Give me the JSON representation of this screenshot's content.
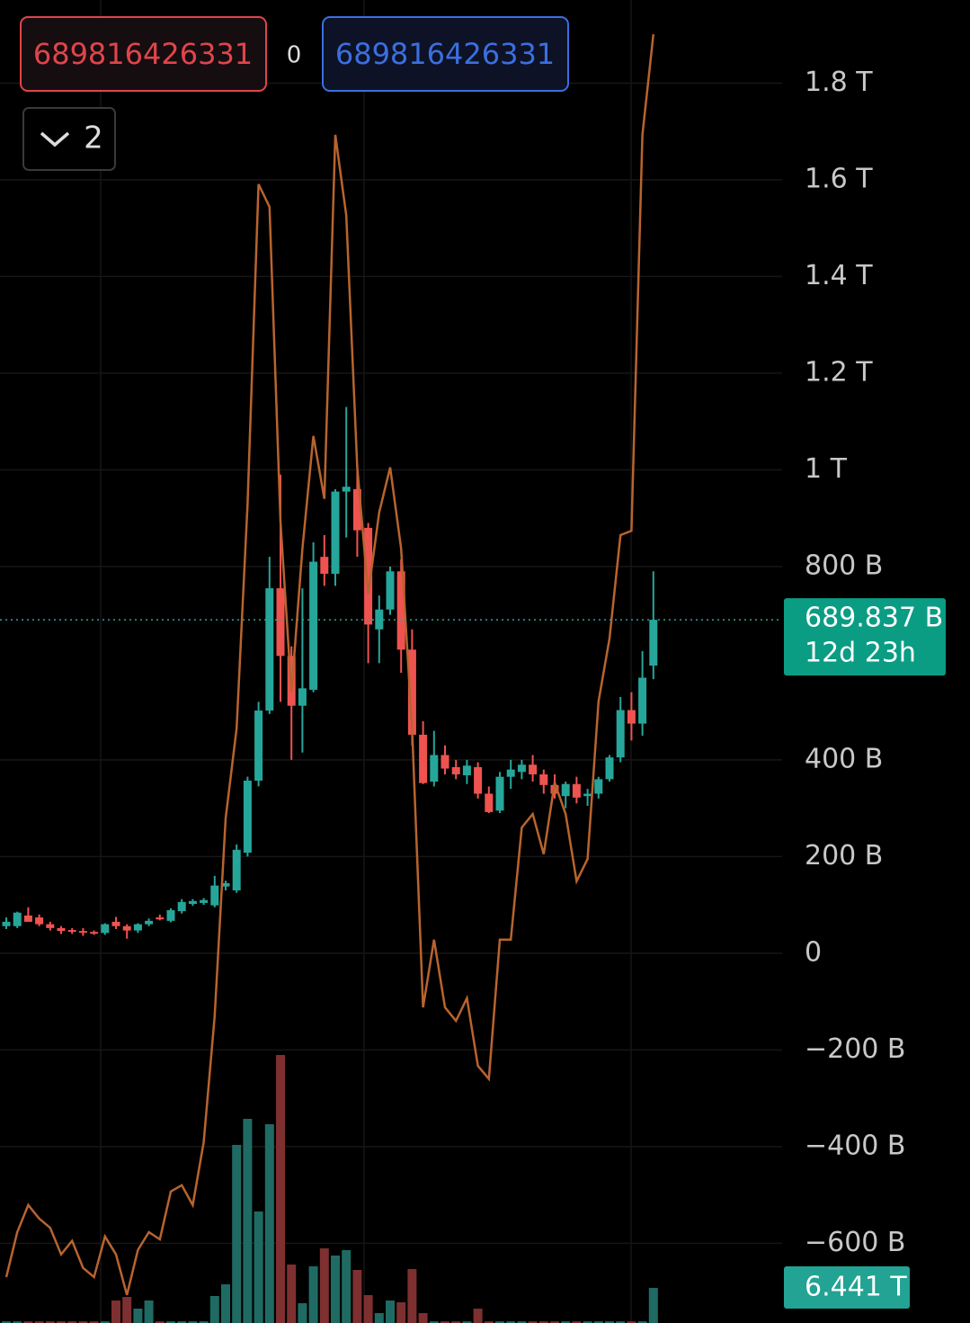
{
  "chart_data": {
    "type": "candlestick",
    "header": {
      "left_value": "689816426331",
      "middle_value": "0",
      "right_value": "689816426331",
      "collapse_count": "2"
    },
    "ylim": [
      -765,
      1972
    ],
    "yticks": [
      {
        "value": 1800,
        "label": "1.8 T"
      },
      {
        "value": 1600,
        "label": "1.6 T"
      },
      {
        "value": 1400,
        "label": "1.4 T"
      },
      {
        "value": 1200,
        "label": "1.2 T"
      },
      {
        "value": 1000,
        "label": "1 T"
      },
      {
        "value": 800,
        "label": "800 B"
      },
      {
        "value": 400,
        "label": "400 B"
      },
      {
        "value": 200,
        "label": "200 B"
      },
      0,
      {
        "value": -200,
        "label": "−200 B"
      },
      {
        "value": -400,
        "label": "−400 B"
      },
      {
        "value": -600,
        "label": "−600 B"
      }
    ],
    "grid": true,
    "up_color": "#26a69a",
    "down_color": "#ef5350",
    "open": [
      56,
      56,
      78,
      74,
      60,
      52,
      48,
      46,
      44,
      42,
      65,
      56,
      47,
      60,
      74,
      67,
      87,
      102,
      104,
      99,
      138,
      130,
      208,
      357,
      502,
      755,
      615,
      512,
      545,
      820,
      785,
      955,
      960,
      880,
      670,
      711,
      790,
      628,
      452,
      355,
      410,
      385,
      368,
      385,
      330,
      295,
      365,
      375,
      390,
      370,
      348,
      325,
      350,
      325,
      330,
      360,
      405,
      503,
      475,
      595
    ],
    "high": [
      74,
      86,
      95,
      80,
      65,
      56,
      52,
      52,
      47,
      62,
      75,
      60,
      62,
      72,
      80,
      93,
      112,
      112,
      114,
      160,
      150,
      225,
      365,
      520,
      820,
      990,
      635,
      755,
      850,
      865,
      960,
      1130,
      1010,
      890,
      740,
      800,
      815,
      670,
      480,
      460,
      430,
      400,
      400,
      395,
      345,
      375,
      400,
      400,
      410,
      380,
      370,
      355,
      365,
      340,
      365,
      410,
      530,
      540,
      625,
      790
    ],
    "low": [
      50,
      52,
      70,
      56,
      47,
      40,
      40,
      36,
      38,
      38,
      50,
      30,
      42,
      56,
      68,
      64,
      82,
      98,
      100,
      95,
      130,
      125,
      200,
      345,
      495,
      520,
      400,
      415,
      540,
      760,
      760,
      860,
      820,
      600,
      600,
      700,
      580,
      430,
      350,
      345,
      370,
      360,
      350,
      320,
      290,
      290,
      340,
      360,
      355,
      330,
      320,
      300,
      310,
      305,
      320,
      355,
      395,
      440,
      450,
      567
    ],
    "close": [
      65,
      84,
      65,
      60,
      52,
      46,
      46,
      44,
      42,
      60,
      56,
      47,
      60,
      67,
      70,
      89,
      106,
      108,
      110,
      140,
      145,
      214,
      357,
      502,
      755,
      615,
      512,
      548,
      810,
      785,
      955,
      965,
      875,
      680,
      711,
      790,
      628,
      452,
      352,
      410,
      382,
      370,
      388,
      330,
      292,
      365,
      380,
      390,
      370,
      348,
      330,
      350,
      322,
      330,
      360,
      405,
      503,
      475,
      570,
      689.837
    ],
    "last_price_label": "689.837 B",
    "countdown": "12d 23h",
    "indicator": {
      "color": "#b8642e",
      "values": [
        -670,
        -577,
        -521,
        -549,
        -568,
        -623,
        -595,
        -651,
        -670,
        -586,
        -623,
        -707,
        -614,
        -577,
        -592,
        -493,
        -480,
        -521,
        -391,
        -130,
        279,
        465,
        930,
        1591,
        1544,
        893,
        540,
        837,
        1070,
        940,
        1693,
        1526,
        1005,
        744,
        912,
        1005,
        837,
        465,
        -112,
        28,
        -112,
        -140,
        -93,
        -233,
        -260,
        28,
        28,
        260,
        288,
        205,
        353,
        288,
        149,
        195,
        521,
        651,
        865,
        874,
        1693,
        1901
      ]
    },
    "volume": {
      "ylim": [
        0,
        242700
      ],
      "up_color": "#1f6b63",
      "down_color": "#7e2f2f",
      "values": [
        300,
        300,
        300,
        300,
        300,
        300,
        300,
        300,
        300,
        300,
        4125,
        4785,
        2640,
        4125,
        300,
        300,
        300,
        300,
        300,
        4950,
        7095,
        32670,
        37455,
        20460,
        36465,
        49170,
        10725,
        3630,
        10395,
        13695,
        12375,
        13365,
        9735,
        5115,
        1815,
        4125,
        3795,
        9900,
        1815,
        300,
        300,
        300,
        300,
        2640,
        300,
        300,
        300,
        300,
        300,
        300,
        300,
        300,
        300,
        300,
        300,
        300,
        300,
        300,
        300,
        6441
      ],
      "label": "6.441 T"
    }
  }
}
